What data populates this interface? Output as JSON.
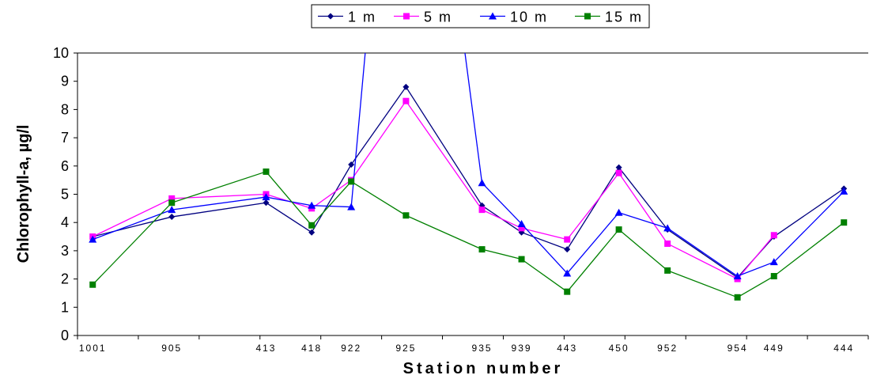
{
  "chart_data": {
    "type": "line",
    "title": "",
    "xlabel": "Station number",
    "ylabel": "Chlorophyll-a, µg/l",
    "ylim": [
      0,
      10
    ],
    "yticks": [
      0,
      1,
      2,
      3,
      4,
      5,
      6,
      7,
      8,
      9,
      10
    ],
    "grid": "horizontal at 10 only",
    "legend_position": "top-center",
    "x_positions": [
      0.25,
      1.55,
      3.1,
      3.85,
      4.5,
      5.4,
      6.65,
      7.3,
      8.05,
      8.9,
      9.7,
      10.85,
      11.45,
      12.6
    ],
    "tick_labels": [
      {
        "pos": 0.25,
        "label": "1001"
      },
      {
        "pos": 1.55,
        "label": "905"
      },
      {
        "pos": 3.1,
        "label": "413"
      },
      {
        "pos": 3.85,
        "label": "418"
      },
      {
        "pos": 4.5,
        "label": "922"
      },
      {
        "pos": 5.4,
        "label": "925"
      },
      {
        "pos": 6.65,
        "label": "935"
      },
      {
        "pos": 7.3,
        "label": "939"
      },
      {
        "pos": 8.05,
        "label": "443"
      },
      {
        "pos": 8.9,
        "label": "450"
      },
      {
        "pos": 9.7,
        "label": "952"
      },
      {
        "pos": 10.85,
        "label": "954"
      },
      {
        "pos": 11.45,
        "label": "449"
      },
      {
        "pos": 12.6,
        "label": "444"
      }
    ],
    "series": [
      {
        "name": "1 m",
        "color": "#000080",
        "marker": "diamond",
        "points": [
          [
            0.25,
            3.5
          ],
          [
            1.55,
            4.2
          ],
          [
            3.1,
            4.7
          ],
          [
            3.85,
            3.65
          ],
          [
            4.5,
            6.05
          ],
          [
            5.4,
            8.8
          ],
          [
            6.65,
            4.6
          ],
          [
            7.3,
            3.65
          ],
          [
            8.05,
            3.05
          ],
          [
            8.9,
            5.95
          ],
          [
            9.7,
            3.75
          ],
          [
            10.85,
            2.05
          ],
          [
            11.45,
            3.5
          ],
          [
            12.6,
            5.2
          ]
        ]
      },
      {
        "name": "5 m",
        "color": "#ff00ff",
        "marker": "square",
        "points": [
          [
            0.25,
            3.5
          ],
          [
            1.55,
            4.85
          ],
          [
            3.1,
            5.0
          ],
          [
            3.85,
            4.5
          ],
          [
            4.5,
            5.5
          ],
          [
            5.4,
            8.3
          ],
          [
            6.65,
            4.45
          ],
          [
            7.3,
            3.8
          ],
          [
            8.05,
            3.4
          ],
          [
            8.9,
            5.75
          ],
          [
            9.7,
            3.25
          ],
          [
            10.85,
            2.0
          ],
          [
            11.45,
            3.55
          ]
        ]
      },
      {
        "name": "10 m",
        "color": "#0000ff",
        "marker": "triangle",
        "points": [
          [
            0.25,
            3.4
          ],
          [
            1.55,
            4.45
          ],
          [
            3.1,
            4.9
          ],
          [
            3.85,
            4.6
          ],
          [
            4.5,
            4.55
          ],
          [
            6.65,
            5.4
          ],
          [
            7.3,
            3.95
          ],
          [
            8.05,
            2.2
          ],
          [
            8.9,
            4.35
          ],
          [
            9.7,
            3.8
          ],
          [
            10.85,
            2.1
          ],
          [
            11.45,
            2.6
          ],
          [
            12.6,
            5.1
          ]
        ],
        "offscale_segments": [
          [
            4.5,
            4.55,
            4.73,
            10
          ],
          [
            6.37,
            10,
            6.65,
            5.4
          ]
        ]
      },
      {
        "name": "15 m",
        "color": "#008000",
        "marker": "square",
        "points": [
          [
            0.25,
            1.8
          ],
          [
            1.55,
            4.7
          ],
          [
            3.1,
            5.8
          ],
          [
            3.85,
            3.9
          ],
          [
            4.5,
            5.45
          ],
          [
            5.4,
            4.25
          ],
          [
            6.65,
            3.05
          ],
          [
            7.3,
            2.7
          ],
          [
            8.05,
            1.55
          ],
          [
            8.9,
            3.75
          ],
          [
            9.7,
            2.3
          ],
          [
            10.85,
            1.35
          ],
          [
            11.45,
            2.1
          ],
          [
            12.6,
            4.0
          ]
        ]
      }
    ]
  }
}
